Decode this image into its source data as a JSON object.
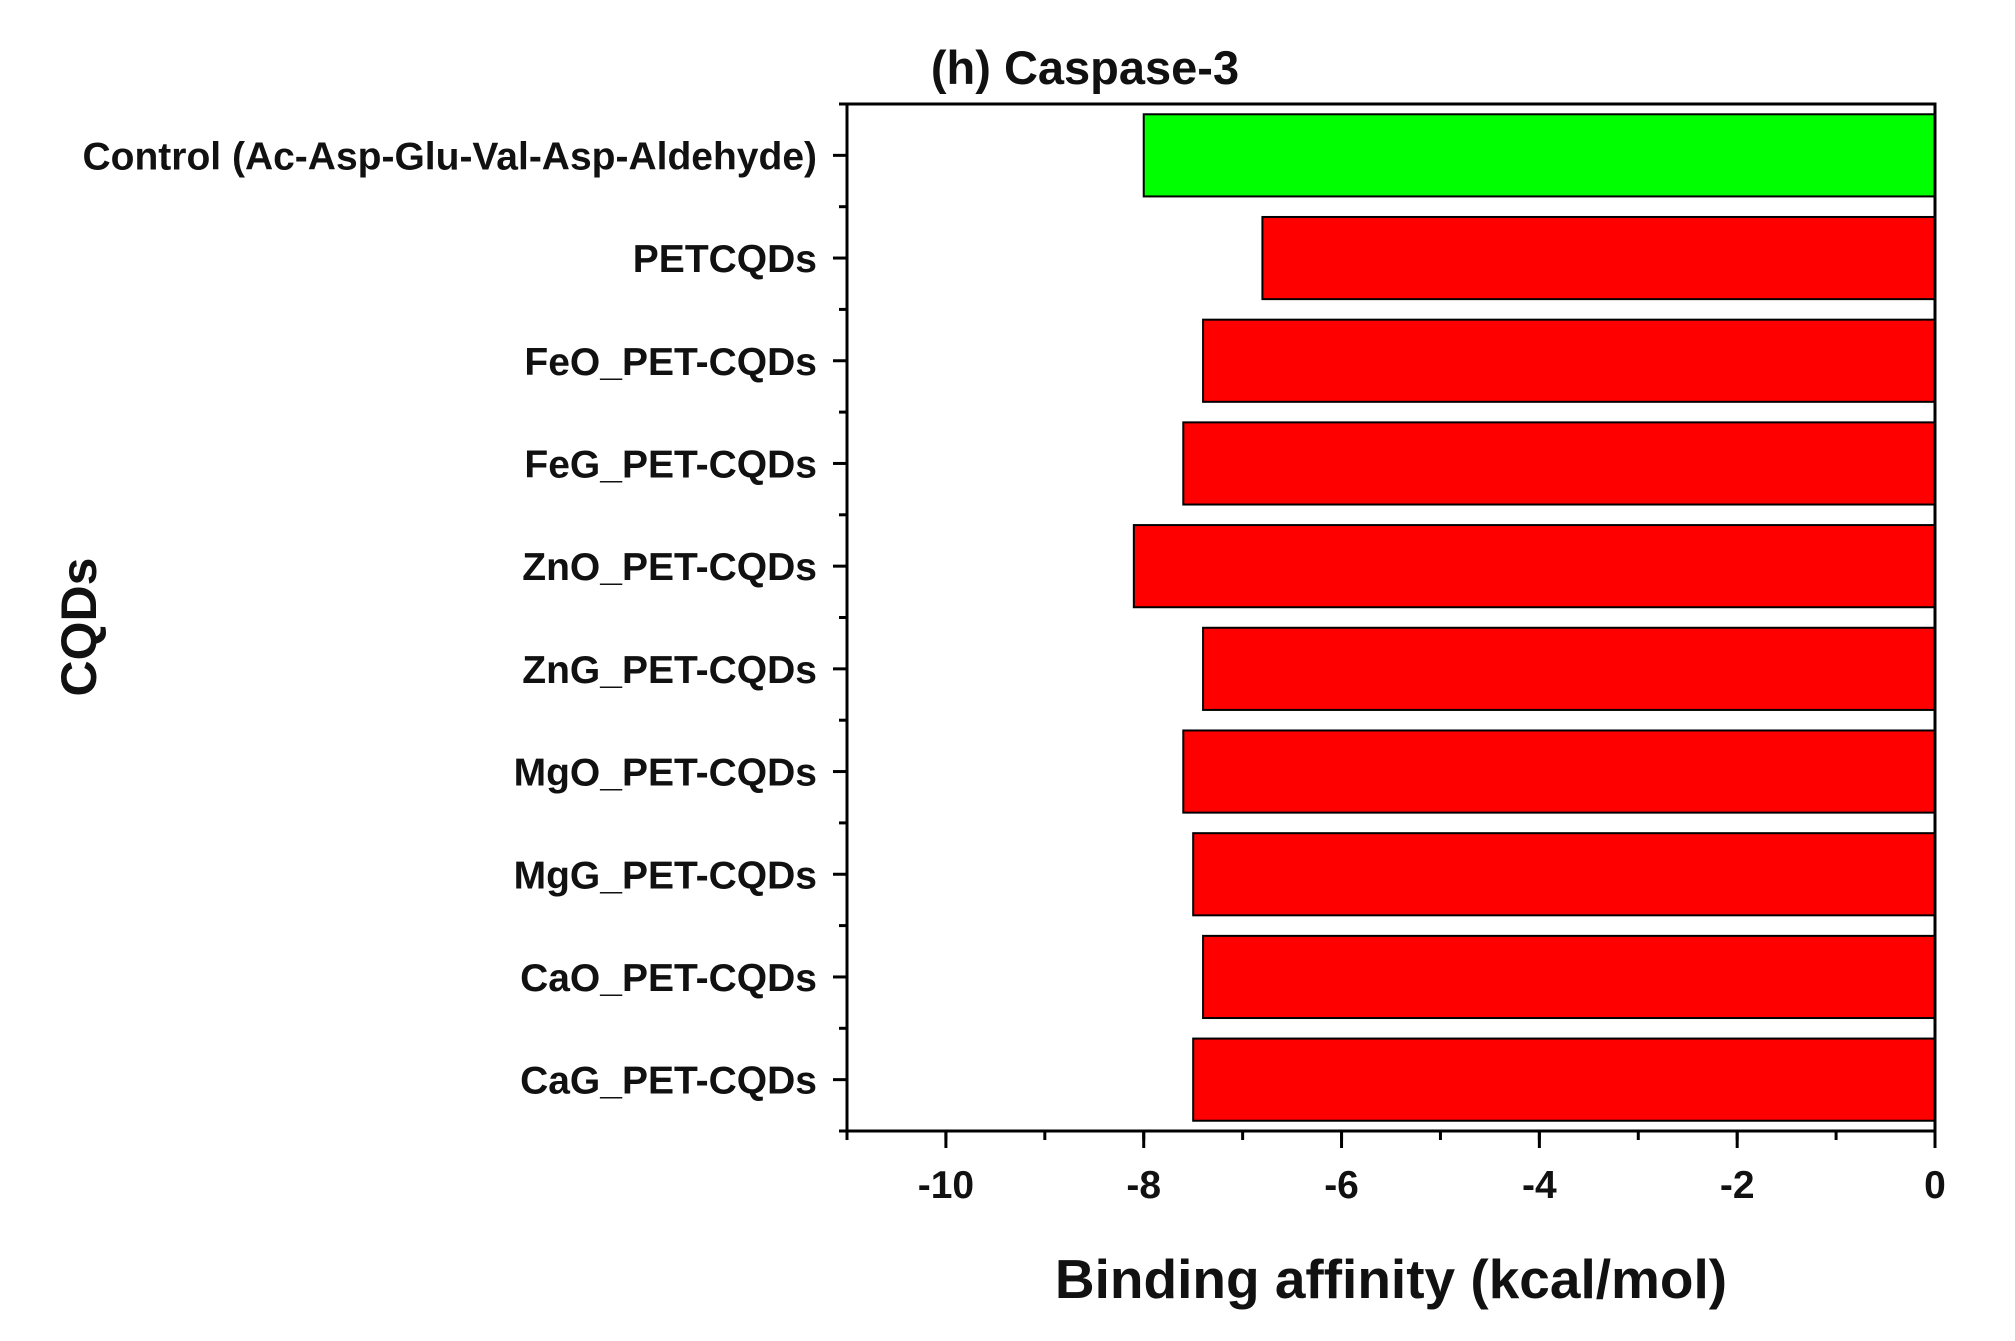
{
  "chart_data": {
    "type": "bar",
    "orientation": "horizontal",
    "title": "(h) Caspase-3",
    "xlabel": "Binding affinity (kcal/mol)",
    "ylabel": "CQDs",
    "xlim": [
      -11,
      0
    ],
    "xticks": [
      -10,
      -8,
      -6,
      -4,
      -2,
      0
    ],
    "xtick_labels": [
      "-10",
      "-8",
      "-6",
      "-4",
      "-2",
      "0"
    ],
    "categories": [
      "Control (Ac-Asp-Glu-Val-Asp-Aldehyde)",
      "PETCQDs",
      "FeO_PET-CQDs",
      "FeG_PET-CQDs",
      "ZnO_PET-CQDs",
      "ZnG_PET-CQDs",
      "MgO_PET-CQDs",
      "MgG_PET-CQDs",
      "CaO_PET-CQDs",
      "CaG_PET-CQDs"
    ],
    "values": [
      -8.0,
      -6.8,
      -7.4,
      -7.6,
      -8.1,
      -7.4,
      -7.6,
      -7.5,
      -7.4,
      -7.5
    ],
    "colors": [
      "#00ff00",
      "#ff0000",
      "#ff0000",
      "#ff0000",
      "#ff0000",
      "#ff0000",
      "#ff0000",
      "#ff0000",
      "#ff0000",
      "#ff0000"
    ],
    "grid": false,
    "legend": "none"
  }
}
